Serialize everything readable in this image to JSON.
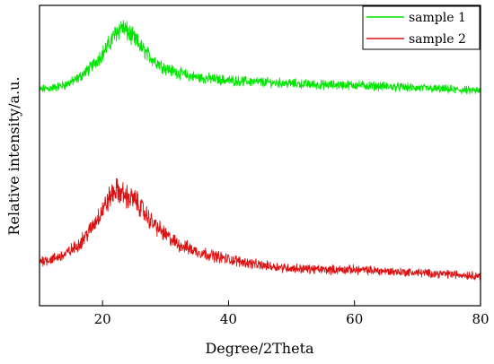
{
  "chart_data": {
    "type": "line",
    "title": "",
    "xlabel": "Degree/2Theta",
    "ylabel": "Relative intensity/a.u.",
    "xlim": [
      10,
      80
    ],
    "ylim": [
      0,
      100
    ],
    "x_ticks": [
      20,
      40,
      60,
      80
    ],
    "x_tick_labels": [
      "20",
      "40",
      "60",
      "80"
    ],
    "y_tick_labels_shown": false,
    "grid": false,
    "legend_position": "top-right",
    "series": [
      {
        "name": "sample 1",
        "color": "#00e600",
        "x": [
          10,
          12,
          14,
          16,
          18,
          20,
          21,
          22,
          23,
          24,
          25,
          26,
          27,
          28,
          30,
          32,
          35,
          40,
          45,
          50,
          55,
          60,
          65,
          70,
          75,
          80
        ],
        "y": [
          72,
          72.5,
          73.5,
          75.5,
          79,
          84,
          87,
          90.5,
          93,
          91,
          89,
          86.5,
          84,
          82,
          79,
          77.5,
          76,
          75,
          74.5,
          74,
          73.5,
          73.5,
          73,
          72.5,
          72,
          71.5
        ]
      },
      {
        "name": "sample 2",
        "color": "#dd1111",
        "x": [
          10,
          12,
          14,
          16,
          18,
          20,
          21,
          22,
          23,
          24,
          25,
          26,
          27,
          28,
          30,
          32,
          35,
          40,
          45,
          50,
          55,
          60,
          65,
          70,
          75,
          80
        ],
        "y": [
          15,
          15.5,
          17,
          20,
          25,
          32,
          35.5,
          38.5,
          37.5,
          36,
          35.5,
          33,
          30,
          27.5,
          23.5,
          20.5,
          18,
          15.5,
          13.5,
          12.5,
          12,
          12,
          11.5,
          11,
          10.5,
          10
        ]
      }
    ]
  }
}
